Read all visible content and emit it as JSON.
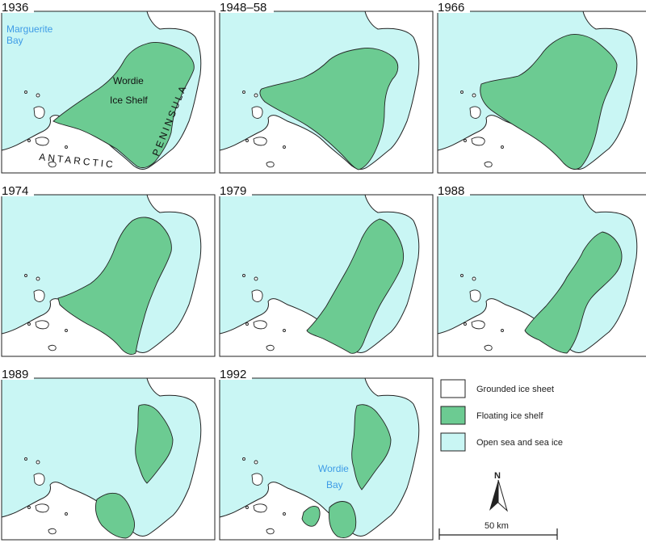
{
  "colors": {
    "grounded": "#ffffff",
    "floating": "#6ccb92",
    "sea": "#c9f6f4",
    "line": "#222222",
    "blue_label": "#3d9be6",
    "dark_label": "#111111"
  },
  "panels": [
    {
      "year": "1936",
      "shelf": "s1936"
    },
    {
      "year": "1948–58",
      "shelf": "s1948"
    },
    {
      "year": "1966",
      "shelf": "s1966"
    },
    {
      "year": "1974",
      "shelf": "s1974"
    },
    {
      "year": "1979",
      "shelf": "s1979"
    },
    {
      "year": "1988",
      "shelf": "s1988"
    },
    {
      "year": "1989",
      "shelf": "s1989"
    },
    {
      "year": "1992",
      "shelf": "s1992"
    }
  ],
  "place_labels": {
    "marguerite_bay_1": "Marguerite",
    "marguerite_bay_2": "Bay",
    "wordie_ice_shelf_1": "Wordie",
    "wordie_ice_shelf_2": "Ice Shelf",
    "antarctic": "ANTARCTIC",
    "peninsula": "PENINSULA",
    "wordie_bay_1": "Wordie",
    "wordie_bay_2": "Bay"
  },
  "legend": [
    {
      "label": "Grounded ice sheet",
      "key": "grounded"
    },
    {
      "label": "Floating ice shelf",
      "key": "floating"
    },
    {
      "label": "Open sea and sea ice",
      "key": "sea"
    }
  ],
  "north_label": "N",
  "scale_label": "50 km"
}
